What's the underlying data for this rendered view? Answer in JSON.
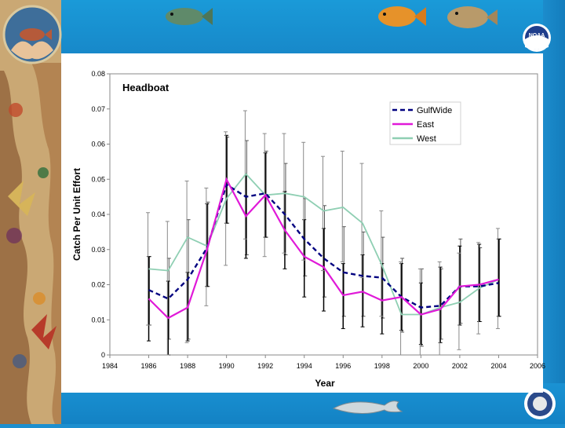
{
  "chart_data": {
    "type": "line",
    "title": "Headboat",
    "xlabel": "Year",
    "ylabel": "Catch Per Unit Effort",
    "xlim": [
      1984,
      2006
    ],
    "ylim": [
      0,
      0.08
    ],
    "x_ticks": [
      "1984",
      "1986",
      "1988",
      "1990",
      "1992",
      "1994",
      "1996",
      "1998",
      "2000",
      "2002",
      "2004",
      "2006"
    ],
    "y_ticks": [
      "0",
      "0.01",
      "0.02",
      "0.03",
      "0.04",
      "0.05",
      "0.06",
      "0.07",
      "0.08"
    ],
    "x": [
      1986,
      1987,
      1988,
      1989,
      1990,
      1991,
      1992,
      1993,
      1994,
      1995,
      1996,
      1997,
      1998,
      1999,
      2000,
      2001,
      2002,
      2003,
      2004
    ],
    "series": [
      {
        "name": "GulfWide",
        "color": "#000080",
        "style": "dashed",
        "values": [
          0.0185,
          0.016,
          0.0215,
          0.0305,
          0.0485,
          0.045,
          0.046,
          0.04,
          0.033,
          0.0275,
          0.0235,
          0.0225,
          0.022,
          0.0165,
          0.0135,
          0.014,
          0.0195,
          0.0195,
          0.0205
        ],
        "err_low": [
          0.0085,
          0.0045,
          0.0045,
          0.0195,
          0.0375,
          0.0285,
          0.0335,
          0.0285,
          0.0225,
          0.0165,
          0.011,
          0.011,
          0.0105,
          0.0065,
          0.0025,
          0.0045,
          0.009,
          0.0095,
          0.011
        ],
        "err_high": [
          0.028,
          0.0275,
          0.0385,
          0.0435,
          0.062,
          0.061,
          0.058,
          0.0545,
          0.0445,
          0.0425,
          0.0365,
          0.035,
          0.0335,
          0.0275,
          0.0245,
          0.0245,
          0.033,
          0.0305,
          0.033
        ]
      },
      {
        "name": "East",
        "color": "#e019d8",
        "style": "solid",
        "values": [
          0.016,
          0.0105,
          0.0135,
          0.03,
          0.05,
          0.0395,
          0.0455,
          0.0355,
          0.028,
          0.025,
          0.017,
          0.018,
          0.0155,
          0.0165,
          0.0115,
          0.013,
          0.0195,
          0.02,
          0.0215
        ],
        "err_low": [
          0.004,
          0.0,
          0.004,
          0.0195,
          0.0375,
          0.0275,
          0.0335,
          0.0245,
          0.0165,
          0.0125,
          0.0075,
          0.008,
          0.006,
          0.007,
          0.003,
          0.0035,
          0.0085,
          0.0095,
          0.011
        ],
        "err_high": [
          0.028,
          0.021,
          0.0235,
          0.043,
          0.0625,
          0.051,
          0.0575,
          0.0465,
          0.0385,
          0.036,
          0.026,
          0.0285,
          0.026,
          0.026,
          0.0205,
          0.025,
          0.031,
          0.0315,
          0.033
        ]
      },
      {
        "name": "West",
        "color": "#8fcfb3",
        "style": "solid",
        "values": [
          0.0245,
          0.024,
          0.0335,
          0.031,
          0.0445,
          0.0515,
          0.0455,
          0.046,
          0.045,
          0.041,
          0.042,
          0.0375,
          0.0255,
          0.0115,
          0.0115,
          0.0135,
          0.015,
          0.019,
          0.0215
        ],
        "err_low": [
          0.0085,
          0.0,
          0.0035,
          0.014,
          0.0255,
          0.033,
          0.028,
          0.029,
          0.027,
          0.024,
          0.0265,
          0.022,
          0.011,
          0.0,
          0.0,
          0.0,
          0.0015,
          0.006,
          0.0075
        ],
        "err_high": [
          0.0405,
          0.038,
          0.0495,
          0.0475,
          0.0635,
          0.0695,
          0.063,
          0.063,
          0.0605,
          0.0565,
          0.058,
          0.0545,
          0.041,
          0.0265,
          0.0245,
          0.0265,
          0.029,
          0.032,
          0.036
        ]
      }
    ],
    "legend_position": "top-right",
    "grid": false
  },
  "logos": {
    "noaa_label": "NOAA"
  }
}
